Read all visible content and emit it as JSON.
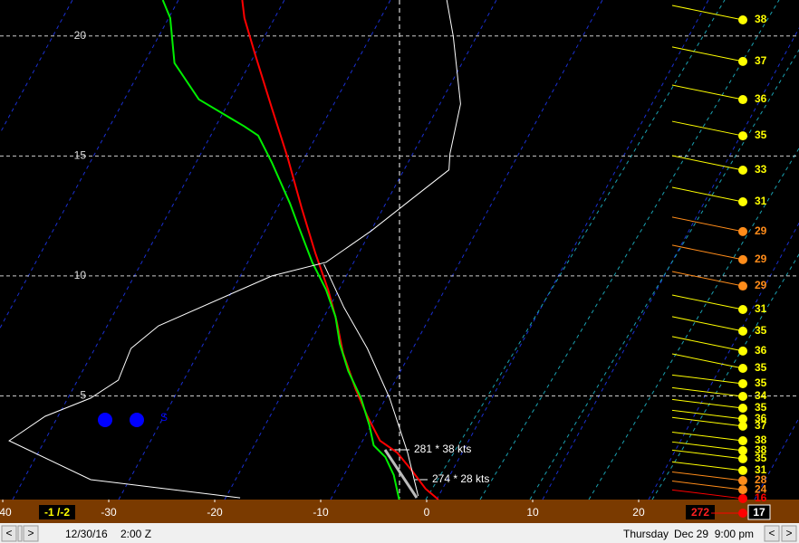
{
  "chart_data": {
    "type": "skewt",
    "xlim": [
      -40.26,
      35.13
    ],
    "ylim": [
      0.68,
      21.5
    ],
    "xticks": [
      {
        "value": -40,
        "label": "40"
      },
      -30,
      -20,
      -10,
      0,
      10,
      20
    ],
    "yticks": [
      5,
      10,
      15,
      20
    ],
    "grid": true,
    "series": [
      {
        "color": "#ff0000",
        "x": [
          1.1,
          -0.1,
          -1.4,
          -2.8,
          -4.4,
          -5.6,
          -6.7,
          -7.9,
          -8.5,
          -9.3,
          -10.5,
          -11.8,
          -13.1,
          -14.6,
          -16.2,
          -17.2,
          -17.4
        ],
        "values": [
          0.68,
          1.13,
          1.89,
          2.64,
          3.13,
          4.15,
          5.28,
          6.79,
          8.11,
          9.43,
          10.94,
          12.83,
          14.91,
          16.98,
          19.25,
          20.75,
          21.5
        ]
      },
      {
        "color": "#00ee00",
        "x": [
          -2.6,
          -3.1,
          -3.9,
          -5.0,
          -5.4,
          -6.2,
          -7.4,
          -8.2,
          -8.6,
          -9.5,
          -10.8,
          -12.1,
          -12.9,
          -14.6,
          -15.9,
          -17.2,
          -21.5,
          -23.8,
          -24.2,
          -24.9
        ],
        "values": [
          0.68,
          1.7,
          2.45,
          2.94,
          3.77,
          4.91,
          6.04,
          7.17,
          8.3,
          9.43,
          10.57,
          12.08,
          13.02,
          14.72,
          15.85,
          16.23,
          17.36,
          18.87,
          20.75,
          21.5
        ]
      },
      {
        "color": "#ffffff",
        "x": [
          -17.6,
          -31.7,
          -39.4,
          -36.0,
          -31.7,
          -29.1,
          -27.9,
          -25.3,
          -14.6,
          -9.5,
          -5.2,
          -1.4,
          2.1,
          2.2,
          3.2,
          2.5,
          1.9
        ],
        "values": [
          0.75,
          1.51,
          3.13,
          4.15,
          4.91,
          5.66,
          6.98,
          7.92,
          10.0,
          10.57,
          11.89,
          13.21,
          14.42,
          15.09,
          17.17,
          20.0,
          21.5
        ]
      },
      {
        "color": "#ffffff",
        "x": [
          -9.7,
          -7.8,
          -5.6,
          -3.5,
          -1.8,
          -0.8
        ],
        "values": [
          10.49,
          8.68,
          6.98,
          4.91,
          2.64,
          0.83
        ]
      }
    ],
    "winds": {
      "heights": [
        20.67,
        18.94,
        17.35,
        15.84,
        14.41,
        13.09,
        11.85,
        10.68,
        9.58,
        8.6,
        7.7,
        6.87,
        6.15,
        5.51,
        4.98,
        4.49,
        4.04,
        3.74,
        3.13,
        2.72,
        2.38,
        1.89,
        1.47,
        1.09,
        0.72
      ],
      "speeds": [
        38,
        37,
        36,
        35,
        33,
        31,
        29,
        29,
        29,
        31,
        35,
        36,
        35,
        35,
        34,
        35,
        36,
        37,
        38,
        38,
        35,
        31,
        28,
        24,
        16
      ],
      "colors": [
        "#ffff00",
        "#ffff00",
        "#ffff00",
        "#ffff00",
        "#ffff00",
        "#ffff00",
        "#ff8c1a",
        "#ff8c1a",
        "#ff8c1a",
        "#ffff00",
        "#ffff00",
        "#ffff00",
        "#ffff00",
        "#ffff00",
        "#ffff00",
        "#ffff00",
        "#ffff00",
        "#ffff00",
        "#ffff00",
        "#ffff00",
        "#ffff00",
        "#ffff00",
        "#ff8c1a",
        "#ff8c1a",
        "#ff0000"
      ]
    },
    "annotations": {
      "wind_upper": "281 * 38 kts",
      "wind_lower": "274 * 28 kts",
      "storm_label": "S",
      "lcl": "-1 /-2",
      "direction": "272",
      "surface_speed": "17"
    }
  },
  "status_bar": {
    "date": "12/30/16",
    "time_utc": "2:00 Z",
    "weekday": "Thursday",
    "local_time": "Dec 29  9:00 pm"
  }
}
